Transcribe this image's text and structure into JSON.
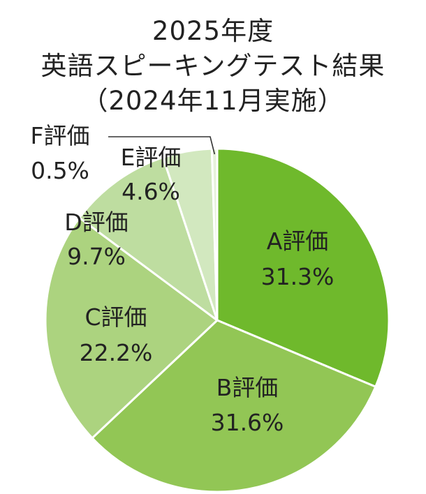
{
  "title": {
    "line1": "2025年度",
    "line2": "英語スピーキングテスト結果",
    "line3": "（2024年11月実施）"
  },
  "chart_data": {
    "type": "pie",
    "title": "2025年度 英語スピーキングテスト結果（2024年11月実施）",
    "slices": [
      {
        "label": "A評価",
        "value": 31.3,
        "display": "31.3%",
        "color": "#6fb92c"
      },
      {
        "label": "B評価",
        "value": 31.6,
        "display": "31.6%",
        "color": "#92c655"
      },
      {
        "label": "C評価",
        "value": 22.2,
        "display": "22.2%",
        "color": "#acd37f"
      },
      {
        "label": "D評価",
        "value": 9.7,
        "display": "9.7%",
        "color": "#bedda0"
      },
      {
        "label": "E評価",
        "value": 4.6,
        "display": "4.6%",
        "color": "#d2e8bf"
      },
      {
        "label": "F評価",
        "value": 0.5,
        "display": "0.5%",
        "color": "#e6f2da"
      }
    ],
    "start": "12 o'clock",
    "direction": "clockwise",
    "legend": "none",
    "label_placement": "on slices; F評価 outside with leader line"
  }
}
